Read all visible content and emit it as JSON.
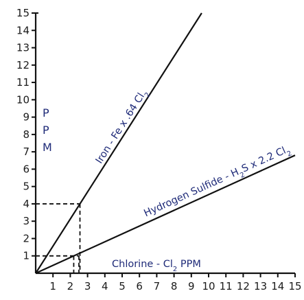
{
  "chart_data": {
    "type": "line",
    "xlim": [
      0,
      15
    ],
    "ylim": [
      0,
      15
    ],
    "x_ticks": [
      "1",
      "2",
      "3",
      "4",
      "5",
      "6",
      "7",
      "8",
      "9",
      "10",
      "11",
      "12",
      "13",
      "14",
      "15"
    ],
    "y_ticks": [
      "1",
      "2",
      "3",
      "4",
      "5",
      "6",
      "7",
      "8",
      "9",
      "10",
      "11",
      "12",
      "13",
      "14",
      "15"
    ],
    "y_axis_letters": [
      "P",
      "P",
      "M"
    ],
    "x_axis_caption": {
      "main": "Chlorine - Cl",
      "sub": "2",
      "tail": "  PPM"
    },
    "series": [
      {
        "label_parts": [
          {
            "text": "Iron - Fe x .64 Cl",
            "sub": false
          },
          {
            "text": "2",
            "sub": true
          }
        ],
        "slope": 1.5625,
        "x": [
          0,
          9.6
        ],
        "y": [
          0,
          15
        ]
      },
      {
        "label_parts": [
          {
            "text": "Hydrogen Sulfide - H",
            "sub": false
          },
          {
            "text": "2",
            "sub": true
          },
          {
            "text": "S x 2.2 Cl",
            "sub": false
          },
          {
            "text": "2",
            "sub": true
          }
        ],
        "slope": 0.4545,
        "x": [
          0,
          15
        ],
        "y": [
          0,
          6.8
        ]
      }
    ],
    "guides": [
      {
        "y": 4,
        "x": 2.56
      },
      {
        "y": 1,
        "x": 2.2
      },
      {
        "y": 1,
        "x": 2.5
      }
    ],
    "colors": {
      "axis": "#111111",
      "line": "#111111",
      "label": "#1e2a78",
      "tick": "#1a1a1a"
    }
  }
}
